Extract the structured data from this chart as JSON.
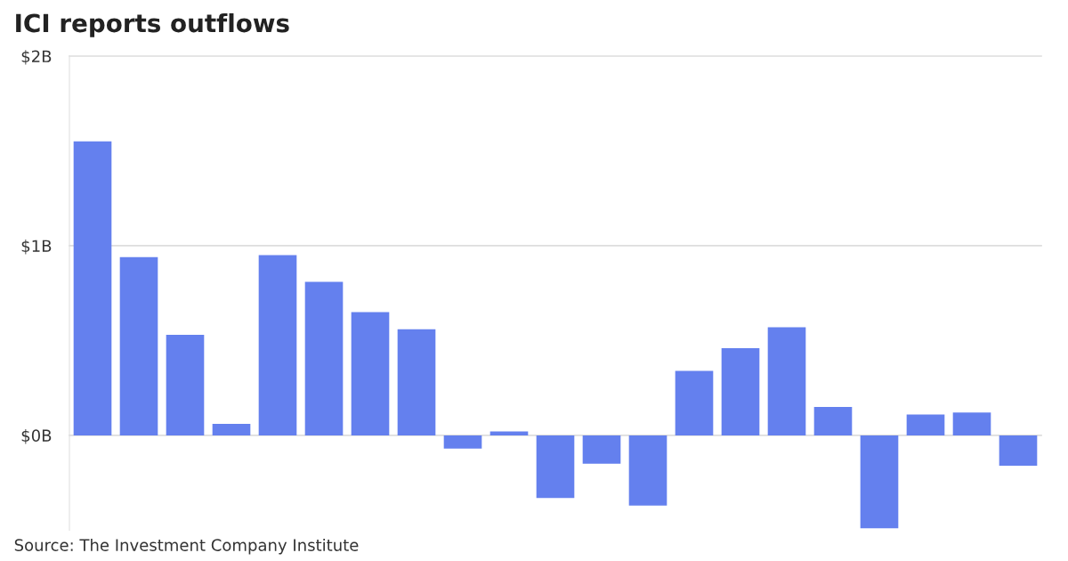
{
  "chart_data": {
    "type": "bar",
    "title": "ICI reports outflows",
    "categories": [
      null,
      null,
      null,
      null,
      null,
      null,
      null,
      null,
      null,
      null,
      null,
      null,
      null,
      null,
      null,
      null,
      null,
      null,
      null,
      null,
      null
    ],
    "values": [
      1.55,
      0.94,
      0.53,
      0.06,
      0.95,
      0.81,
      0.65,
      0.56,
      -0.07,
      0.02,
      -0.33,
      -0.15,
      -0.37,
      0.34,
      0.46,
      0.57,
      0.15,
      -0.49,
      0.11,
      0.12,
      -0.16
    ],
    "color": "#6480ee",
    "ylim": [
      -0.5,
      2
    ],
    "yticks": [
      {
        "value": 0,
        "label": "$0B"
      },
      {
        "value": 1,
        "label": "$1B"
      },
      {
        "value": 2,
        "label": "$2B"
      }
    ],
    "grid": "y",
    "annotations": [
      "Source: The Investment Company Institute"
    ]
  }
}
